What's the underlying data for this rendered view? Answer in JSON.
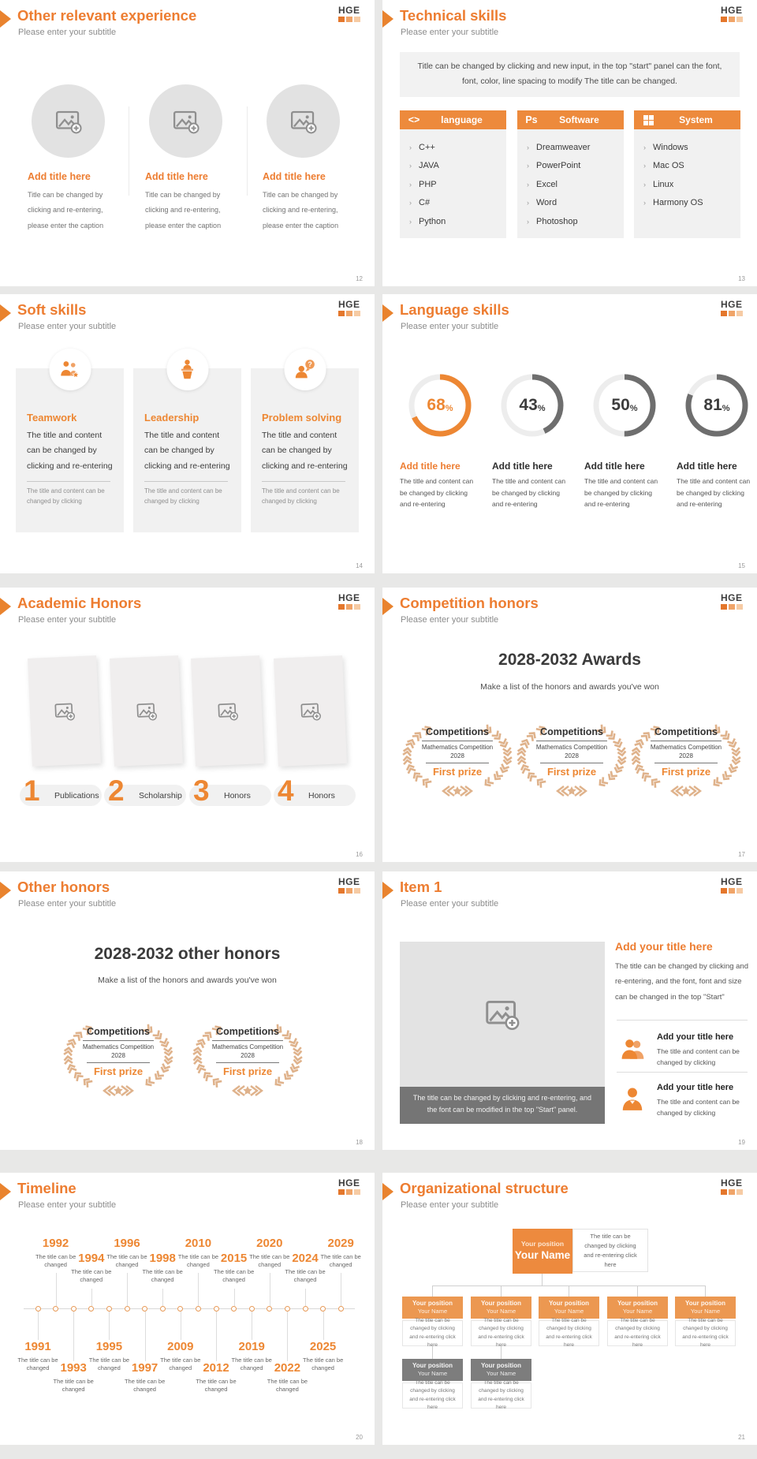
{
  "page_bg": "#e8e8e7",
  "accent": "#ed7d31",
  "logo": {
    "text": "HGE",
    "square_colors": [
      "#e4772c",
      "#f0a468",
      "#f6cba4"
    ]
  },
  "common": {
    "subtitle": "Please enter your subtitle"
  },
  "slides": {
    "s12": {
      "title": "Other relevant experience",
      "page": "12",
      "cards": [
        {
          "title": "Add title here",
          "body": "Title can be changed by clicking and re-entering, please enter the caption"
        },
        {
          "title": "Add title here",
          "body": "Title can be changed by clicking and re-entering, please enter the caption"
        },
        {
          "title": "Add title here",
          "body": "Title can be changed by clicking and re-entering, please enter the caption"
        }
      ]
    },
    "s13": {
      "title": "Technical skills",
      "page": "13",
      "note": "Title can be changed by clicking and new input, in the top \"start\" panel can the font, font, color, line spacing to modify The title can be changed.",
      "columns": [
        {
          "icon": "code-icon",
          "glyph": "<>",
          "label": "language",
          "items": [
            "C++",
            "JAVA",
            "PHP",
            "C#",
            "Python"
          ]
        },
        {
          "icon": "photoshop-icon",
          "glyph": "Ps",
          "label": "Software",
          "items": [
            "Dreamweaver",
            "PowerPoint",
            "Excel",
            "Word",
            "Photoshop"
          ]
        },
        {
          "icon": "windows-icon",
          "glyph": "",
          "label": "System",
          "items": [
            "Windows",
            "Mac OS",
            "Linux",
            "Harmony OS"
          ]
        }
      ]
    },
    "s14": {
      "title": "Soft skills",
      "page": "14",
      "cards": [
        {
          "icon": "teamwork-icon",
          "title": "Teamwork",
          "body": "The title and content can be changed by clicking and re-entering",
          "footnote": "The title and content can be changed by clicking"
        },
        {
          "icon": "leadership-icon",
          "title": "Leadership",
          "body": "The title and content can be changed by clicking and re-entering",
          "footnote": "The title and content can be changed by clicking"
        },
        {
          "icon": "problem-solving-icon",
          "title": "Problem solving",
          "body": "The title and content can be changed by clicking and re-entering",
          "footnote": "The title and content can be changed by clicking"
        }
      ]
    },
    "s15": {
      "title": "Language skills",
      "page": "15",
      "chart_data": {
        "type": "donut-progress",
        "values": [
          68,
          43,
          50,
          81
        ],
        "unit": "%",
        "accent_index": 0,
        "accent_color": "#ed8733",
        "gray_color": "#6e6e6e",
        "track_color": "#ededed",
        "items": [
          {
            "pct": "68",
            "title": "Add title here",
            "body": "The title and content can be changed by clicking and re-entering"
          },
          {
            "pct": "43",
            "title": "Add title here",
            "body": "The title and content can be changed by clicking and re-entering"
          },
          {
            "pct": "50",
            "title": "Add title here",
            "body": "The title and content can be changed by clicking and re-entering"
          },
          {
            "pct": "81",
            "title": "Add title here",
            "body": "The title and content can be changed by clicking and re-entering"
          }
        ]
      }
    },
    "s16": {
      "title": "Academic Honors",
      "page": "16",
      "steps": [
        {
          "num": "1",
          "label": "Publications"
        },
        {
          "num": "2",
          "label": "Scholarship"
        },
        {
          "num": "3",
          "label": "Honors"
        },
        {
          "num": "4",
          "label": "Honors"
        }
      ]
    },
    "s17": {
      "title": "Competition honors",
      "page": "17",
      "heading": "2028-2032 Awards",
      "subheading": "Make a list of the honors and awards you've won",
      "wreaths": [
        {
          "title": "Competitions",
          "line1": "Mathematics Competition",
          "line2": "2028",
          "prize": "First prize"
        },
        {
          "title": "Competitions",
          "line1": "Mathematics Competition",
          "line2": "2028",
          "prize": "First prize"
        },
        {
          "title": "Competitions",
          "line1": "Mathematics Competition",
          "line2": "2028",
          "prize": "First prize"
        }
      ]
    },
    "s18": {
      "title": "Other honors",
      "page": "18",
      "heading": "2028-2032 other honors",
      "subheading": "Make a list of the honors and awards you've won",
      "wreaths": [
        {
          "title": "Competitions",
          "line1": "Mathematics Competition",
          "line2": "2028",
          "prize": "First prize"
        },
        {
          "title": "Competitions",
          "line1": "Mathematics Competition",
          "line2": "2028",
          "prize": "First prize"
        }
      ]
    },
    "s19": {
      "title": "Item 1",
      "page": "19",
      "image_caption": "The title can be changed by clicking and re-entering, and the font can be modified in the top \"Start\" panel.",
      "right": {
        "title": "Add your title here",
        "body": "The title can be changed by clicking and re-entering, and the font, font and size can be changed in the top \"Start\"",
        "items": [
          {
            "icon": "people-icon",
            "title": "Add your title here",
            "body": "The title and content can be changed by clicking"
          },
          {
            "icon": "person-icon",
            "title": "Add your title here",
            "body": "The title and content can be changed by clicking"
          }
        ]
      }
    },
    "s20": {
      "title": "Timeline",
      "page": "20",
      "chart_data": {
        "type": "timeline",
        "caption": "The title can be changed",
        "events": [
          {
            "year": "1991",
            "side": "bottom",
            "level": 1
          },
          {
            "year": "1992",
            "side": "top",
            "level": 1
          },
          {
            "year": "1993",
            "side": "bottom",
            "level": 2
          },
          {
            "year": "1994",
            "side": "top",
            "level": 2
          },
          {
            "year": "1995",
            "side": "bottom",
            "level": 1
          },
          {
            "year": "1996",
            "side": "top",
            "level": 1
          },
          {
            "year": "1997",
            "side": "bottom",
            "level": 2
          },
          {
            "year": "1998",
            "side": "top",
            "level": 2
          },
          {
            "year": "2009",
            "side": "bottom",
            "level": 1
          },
          {
            "year": "2010",
            "side": "top",
            "level": 1
          },
          {
            "year": "2012",
            "side": "bottom",
            "level": 2
          },
          {
            "year": "2015",
            "side": "top",
            "level": 2
          },
          {
            "year": "2019",
            "side": "bottom",
            "level": 1
          },
          {
            "year": "2020",
            "side": "top",
            "level": 1
          },
          {
            "year": "2022",
            "side": "bottom",
            "level": 2
          },
          {
            "year": "2024",
            "side": "top",
            "level": 2
          },
          {
            "year": "2025",
            "side": "bottom",
            "level": 1
          },
          {
            "year": "2029",
            "side": "top",
            "level": 1
          }
        ]
      }
    },
    "s21": {
      "title": "Organizational structure",
      "page": "21",
      "root": {
        "position": "Your position",
        "name": "Your Name"
      },
      "root_note": "The title can be changed by clicking and re-entering click here",
      "node_note": "The title can be changed by clicking and re-entering click here",
      "row2": [
        {
          "position": "Your position",
          "name": "Your Name"
        },
        {
          "position": "Your position",
          "name": "Your Name"
        },
        {
          "position": "Your position",
          "name": "Your Name"
        },
        {
          "position": "Your position",
          "name": "Your Name"
        },
        {
          "position": "Your position",
          "name": "Your Name"
        }
      ],
      "row3": [
        {
          "position": "Your position",
          "name": "Your Name"
        },
        {
          "position": "Your position",
          "name": "Your Name"
        }
      ]
    }
  }
}
